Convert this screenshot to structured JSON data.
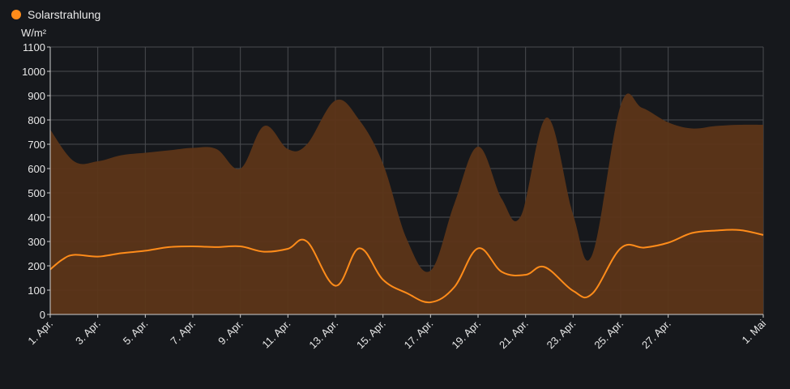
{
  "legend": {
    "label": "Solarstrahlung",
    "color": "#ff8c1a"
  },
  "chart_data": {
    "type": "area",
    "title": "",
    "xlabel": "",
    "ylabel": "W/m²",
    "ylim": [
      0,
      1100
    ],
    "yticks": [
      0,
      100,
      200,
      300,
      400,
      500,
      600,
      700,
      800,
      900,
      1000,
      1100
    ],
    "xlim": [
      1,
      31
    ],
    "x_tick_labels": [
      {
        "day": 1,
        "label": "1. Apr."
      },
      {
        "day": 3,
        "label": "3. Apr."
      },
      {
        "day": 5,
        "label": "5. Apr."
      },
      {
        "day": 7,
        "label": "7. Apr."
      },
      {
        "day": 9,
        "label": "9. Apr."
      },
      {
        "day": 11,
        "label": "11. Apr."
      },
      {
        "day": 13,
        "label": "13. Apr."
      },
      {
        "day": 15,
        "label": "15. Apr."
      },
      {
        "day": 17,
        "label": "17. Apr."
      },
      {
        "day": 19,
        "label": "19. Apr."
      },
      {
        "day": 21,
        "label": "21. Apr."
      },
      {
        "day": 23,
        "label": "23. Apr."
      },
      {
        "day": 25,
        "label": "25. Apr."
      },
      {
        "day": 27,
        "label": "27. Apr."
      },
      {
        "day": 31,
        "label": "1. Mai"
      }
    ],
    "grid": true,
    "legend_position": "top-left",
    "series": [
      {
        "role": "max",
        "color": "#5c3518",
        "x": [
          1,
          2,
          3,
          4,
          5,
          6,
          7,
          8,
          9,
          10,
          11,
          11.8,
          13,
          14,
          15,
          16,
          17,
          18,
          19,
          20,
          20.8,
          21.9,
          23,
          23.8,
          25,
          25.9,
          27,
          28,
          29,
          30,
          31
        ],
        "values": [
          760,
          630,
          630,
          655,
          665,
          675,
          685,
          680,
          600,
          775,
          680,
          700,
          880,
          800,
          620,
          310,
          180,
          455,
          690,
          475,
          405,
          810,
          410,
          245,
          860,
          850,
          790,
          765,
          775,
          780,
          780
        ]
      },
      {
        "role": "mean",
        "color": "#ff8c1a",
        "x": [
          1,
          1.5,
          2,
          3,
          4,
          5,
          6,
          7,
          8,
          9,
          10,
          11,
          11.8,
          13,
          14,
          15,
          16,
          17,
          18,
          19,
          20,
          21,
          21.8,
          23,
          23.8,
          25,
          26,
          27,
          28,
          29,
          30,
          31
        ],
        "values": [
          185,
          225,
          245,
          238,
          252,
          262,
          277,
          280,
          277,
          280,
          258,
          270,
          300,
          118,
          272,
          143,
          88,
          50,
          112,
          272,
          175,
          163,
          195,
          97,
          85,
          272,
          275,
          295,
          335,
          345,
          347,
          327
        ]
      }
    ]
  }
}
